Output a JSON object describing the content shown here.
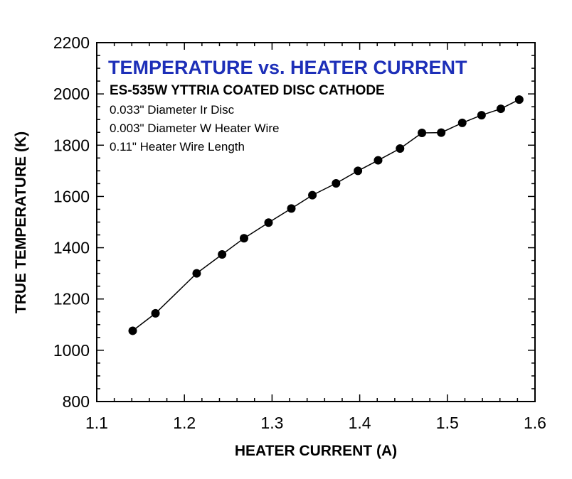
{
  "chart_data": {
    "type": "line",
    "title": "TEMPERATURE vs. HEATER CURRENT",
    "subtitle": "ES-535W YTTRIA COATED DISC CATHODE",
    "annotations": [
      "0.033\" Diameter Ir Disc",
      "0.003\" Diameter W Heater Wire",
      "0.11\" Heater Wire Length"
    ],
    "xlabel": "HEATER CURRENT (A)",
    "ylabel": "TRUE TEMPERATURE (K)",
    "xlim": [
      1.1,
      1.6
    ],
    "ylim": [
      800,
      2200
    ],
    "x_ticks": [
      "1.1",
      "1.2",
      "1.3",
      "1.4",
      "1.5",
      "1.6"
    ],
    "y_ticks": [
      "800",
      "1000",
      "1200",
      "1400",
      "1600",
      "1800",
      "2000",
      "2200"
    ],
    "grid": false,
    "colors": {
      "title": "#1d2fb8",
      "series": "#000000"
    },
    "series": [
      {
        "marker": "filled-circle",
        "x": [
          1.141,
          1.167,
          1.214,
          1.243,
          1.268,
          1.296,
          1.322,
          1.346,
          1.373,
          1.398,
          1.421,
          1.446,
          1.471,
          1.493,
          1.517,
          1.539,
          1.561,
          1.582
        ],
        "y": [
          1076,
          1144,
          1300,
          1374,
          1437,
          1498,
          1553,
          1605,
          1651,
          1700,
          1741,
          1787,
          1848,
          1849,
          1887,
          1917,
          1942,
          1978
        ]
      }
    ]
  }
}
